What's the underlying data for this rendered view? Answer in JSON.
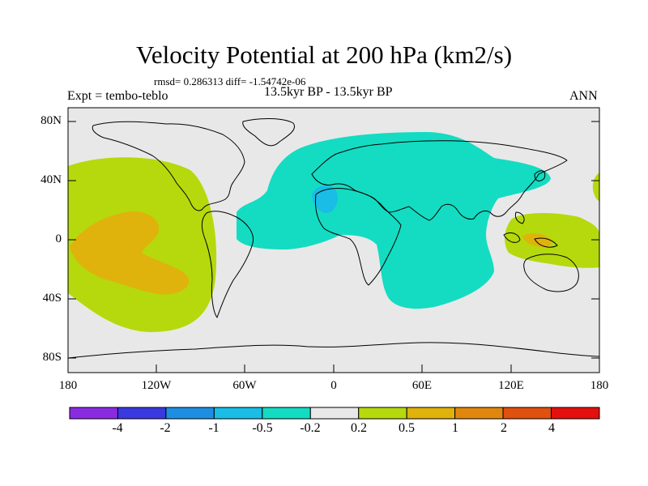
{
  "title": "Velocity Potential at 200 hPa (km2/s)",
  "stats": "rmsd= 0.286313 diff= -1.54742e-06",
  "expt": "Expt = tembo-teblo",
  "period": "13.5kyr BP - 13.5kyr BP",
  "season": "ANN",
  "lat_labels": [
    "80N",
    "40N",
    "0",
    "40S",
    "80S"
  ],
  "lon_labels": [
    "180",
    "120W",
    "60W",
    "0",
    "60E",
    "120E",
    "180"
  ],
  "colorbar": {
    "colors": [
      "#8a2be2",
      "#3a38e0",
      "#1d8fe3",
      "#19bde6",
      "#13dcc2",
      "#e8e8e8",
      "#b5d90c",
      "#e0b20c",
      "#e1870e",
      "#e0500e",
      "#e4100e"
    ],
    "labels": [
      "-4",
      "-2",
      "-1",
      "-0.5",
      "-0.2",
      "0.2",
      "0.5",
      "1",
      "2",
      "4"
    ]
  },
  "fill_colors": {
    "ocean": "#e8e8e8",
    "neg_small": "#13dcc2",
    "neg_mid": "#19bde6",
    "pos_small": "#b5d90c",
    "pos_mid": "#e0b20c"
  }
}
